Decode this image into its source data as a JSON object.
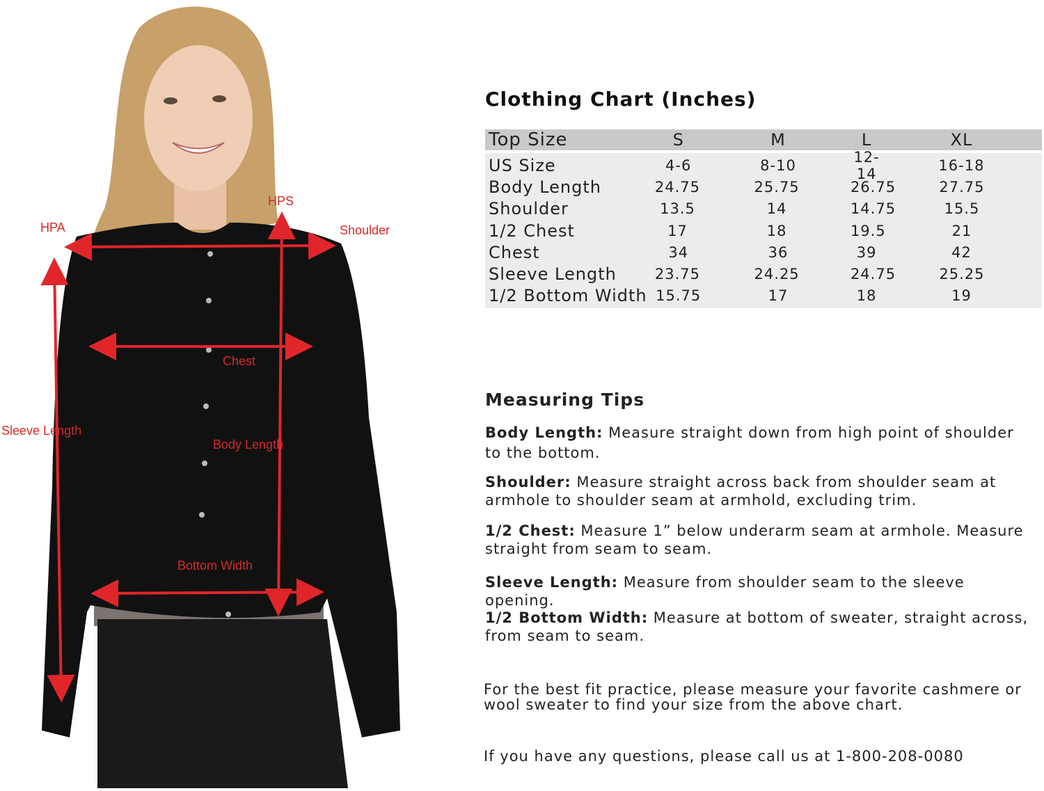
{
  "figure": {
    "labels": {
      "hpa": "HPA",
      "hps": "HPS",
      "shoulder": "Shoulder",
      "chest": "Chest",
      "sleeve_length": "Sleeve Length",
      "body_length": "Body Length",
      "bottom_width": "Bottom Width"
    },
    "colors": {
      "arrow": "#e0262b",
      "cardigan": "#111111",
      "undershirt": "#7a7370"
    }
  },
  "chart": {
    "title": "Clothing Chart (Inches)",
    "header": [
      "Top Size",
      "S",
      "M",
      "L",
      "XL"
    ],
    "rows": [
      [
        "US Size",
        "4-6",
        "8-10",
        "12-14",
        "16-18"
      ],
      [
        "Body Length",
        "24.75",
        "25.75",
        "26.75",
        "27.75"
      ],
      [
        "Shoulder",
        "13.5",
        "14",
        "14.75",
        "15.5"
      ],
      [
        "1/2 Chest",
        "17",
        "18",
        "19.5",
        "21"
      ],
      [
        "Chest",
        "34",
        "36",
        "39",
        "42"
      ],
      [
        "Sleeve Length",
        "23.75",
        "24.25",
        "24.75",
        "25.25"
      ],
      [
        "1/2 Bottom Width",
        "15.75",
        "17",
        "18",
        "19"
      ]
    ]
  },
  "tips": {
    "title": "Measuring Tips",
    "items": [
      {
        "term": "Body Length:",
        "text": " Measure straight down from high point of shoulder to the bottom."
      },
      {
        "term": "Shoulder:",
        "text": " Measure straight across back from shoulder seam at armhole to shoulder seam at armhold, excluding trim."
      },
      {
        "term": "1/2 Chest:",
        "text": " Measure 1” below underarm seam at armhole. Measure straight from seam to seam."
      },
      {
        "term": "Sleeve Length:",
        "text": " Measure from shoulder seam to the sleeve opening."
      },
      {
        "term": "1/2 Bottom Width:",
        "text": " Measure at bottom of sweater, straight across, from seam to seam."
      }
    ]
  },
  "notes": {
    "fit": "For the best fit practice, please measure your favorite cashmere or wool sweater to find your size from the above chart.",
    "contact": "If you have any questions, please call us at 1-800-208-0080"
  }
}
